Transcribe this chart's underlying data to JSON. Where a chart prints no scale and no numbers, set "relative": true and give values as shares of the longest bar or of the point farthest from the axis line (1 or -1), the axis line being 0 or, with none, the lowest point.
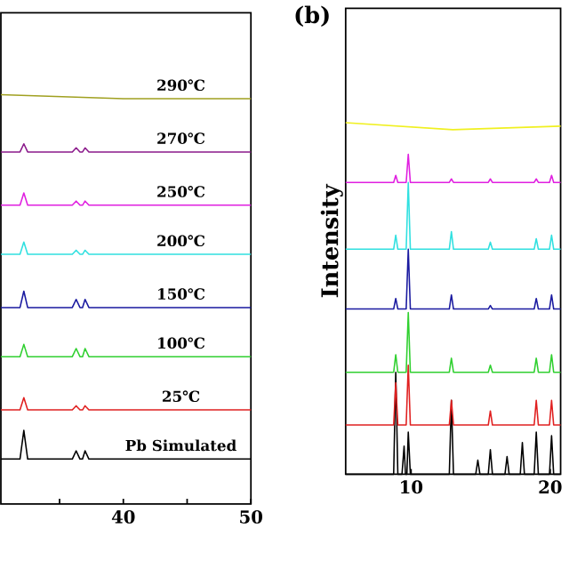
{
  "chart_data": [
    {
      "type": "line",
      "relative": true,
      "xlim": [
        30.4,
        50
      ],
      "xticks": [
        {
          "value": 35,
          "label": null
        },
        40,
        {
          "value": 45,
          "label": null
        },
        50
      ],
      "series": [
        {
          "name": "Pb Simulated",
          "color": "#000000",
          "x": [
            30.4,
            31.9,
            32.2,
            32.5,
            36.0,
            36.3,
            36.6,
            36.8,
            37.0,
            37.3,
            50
          ],
          "values": [
            0.11,
            0.11,
            0.18,
            0.11,
            0.11,
            0.13,
            0.11,
            0.11,
            0.13,
            0.11,
            0.11
          ]
        },
        {
          "name": "25℃",
          "color": "#e02020",
          "x": [
            30.4,
            31.9,
            32.2,
            32.5,
            36.0,
            36.3,
            36.6,
            36.8,
            37.0,
            37.3,
            50
          ],
          "values": [
            0.23,
            0.23,
            0.26,
            0.23,
            0.23,
            0.24,
            0.23,
            0.23,
            0.24,
            0.23,
            0.23
          ]
        },
        {
          "name": "100℃",
          "color": "#30d030",
          "x": [
            30.4,
            31.9,
            32.2,
            32.5,
            36.0,
            36.3,
            36.6,
            36.8,
            37.0,
            37.3,
            50
          ],
          "values": [
            0.36,
            0.36,
            0.39,
            0.36,
            0.36,
            0.38,
            0.36,
            0.36,
            0.38,
            0.36,
            0.36
          ]
        },
        {
          "name": "150℃",
          "color": "#1a1aa0",
          "x": [
            30.4,
            31.9,
            32.2,
            32.5,
            36.0,
            36.3,
            36.6,
            36.8,
            37.0,
            37.3,
            50
          ],
          "values": [
            0.48,
            0.48,
            0.52,
            0.48,
            0.48,
            0.5,
            0.48,
            0.48,
            0.5,
            0.48,
            0.48
          ]
        },
        {
          "name": "200℃",
          "color": "#30e0e0",
          "x": [
            30.4,
            31.9,
            32.2,
            32.5,
            36.0,
            36.3,
            36.6,
            36.8,
            37.0,
            37.3,
            50
          ],
          "values": [
            0.61,
            0.61,
            0.64,
            0.61,
            0.61,
            0.62,
            0.61,
            0.61,
            0.62,
            0.61,
            0.61
          ]
        },
        {
          "name": "250℃",
          "color": "#e020e0",
          "x": [
            30.4,
            31.9,
            32.2,
            32.5,
            36.0,
            36.3,
            36.6,
            36.8,
            37.0,
            37.3,
            50
          ],
          "values": [
            0.73,
            0.73,
            0.76,
            0.73,
            0.73,
            0.74,
            0.73,
            0.73,
            0.74,
            0.73,
            0.73
          ]
        },
        {
          "name": "270℃",
          "color": "#8b1a8b",
          "x": [
            30.4,
            31.9,
            32.2,
            32.5,
            36.0,
            36.3,
            36.6,
            36.8,
            37.0,
            37.3,
            50
          ],
          "values": [
            0.86,
            0.86,
            0.88,
            0.86,
            0.86,
            0.87,
            0.86,
            0.86,
            0.87,
            0.86,
            0.86
          ]
        },
        {
          "name": "290℃",
          "color": "#a0a020",
          "x": [
            30.4,
            40,
            50
          ],
          "values": [
            1,
            0.99,
            0.99
          ]
        }
      ]
    },
    {
      "type": "line",
      "relative": true,
      "title": "(b)",
      "ylabel": "Intensity",
      "xlim": [
        5.3,
        20.75
      ],
      "xticks": [
        10,
        20
      ],
      "series": [
        {
          "color": "#000000",
          "x": [
            5.3,
            8.75,
            8.9,
            9.05,
            9.35,
            9.5,
            9.6,
            9.7,
            9.8,
            9.95,
            12.75,
            12.9,
            13.05,
            14.65,
            14.8,
            14.95,
            15.55,
            15.7,
            15.85,
            16.75,
            16.9,
            17.05,
            17.85,
            18.0,
            18.15,
            18.85,
            19.0,
            19.15,
            19.95,
            20.1,
            20.25,
            20.75
          ],
          "values": [
            0,
            0,
            0.29,
            0,
            0,
            0.08,
            0,
            0,
            0.12,
            0,
            0,
            0.21,
            0,
            0,
            0.04,
            0,
            0,
            0.07,
            0,
            0,
            0.05,
            0,
            0,
            0.09,
            0,
            0,
            0.12,
            0,
            0,
            0.11,
            0,
            0
          ]
        },
        {
          "color": "#e02020",
          "x": [
            5.3,
            8.75,
            8.9,
            9.05,
            9.65,
            9.8,
            9.95,
            12.75,
            12.9,
            13.05,
            15.55,
            15.7,
            15.85,
            18.85,
            19.0,
            19.15,
            19.95,
            20.1,
            20.25,
            20.75
          ],
          "values": [
            0.14,
            0.14,
            0.26,
            0.14,
            0.14,
            0.31,
            0.14,
            0.14,
            0.21,
            0.14,
            0.14,
            0.18,
            0.14,
            0.14,
            0.21,
            0.14,
            0.14,
            0.21,
            0.14,
            0.14
          ]
        },
        {
          "color": "#30d030",
          "x": [
            5.3,
            8.75,
            8.9,
            9.05,
            9.65,
            9.8,
            9.95,
            12.75,
            12.9,
            13.05,
            15.55,
            15.7,
            15.85,
            18.85,
            19.0,
            19.15,
            19.95,
            20.1,
            20.25,
            20.75
          ],
          "values": [
            0.29,
            0.29,
            0.34,
            0.29,
            0.29,
            0.46,
            0.29,
            0.29,
            0.33,
            0.29,
            0.29,
            0.31,
            0.29,
            0.29,
            0.33,
            0.29,
            0.29,
            0.34,
            0.29,
            0.29
          ]
        },
        {
          "color": "#1a1aa0",
          "x": [
            5.3,
            8.75,
            8.9,
            9.05,
            9.65,
            9.8,
            9.95,
            12.75,
            12.9,
            13.05,
            15.55,
            15.7,
            15.85,
            18.85,
            19.0,
            19.15,
            19.95,
            20.1,
            20.25,
            20.75
          ],
          "values": [
            0.47,
            0.47,
            0.5,
            0.47,
            0.47,
            0.64,
            0.47,
            0.47,
            0.51,
            0.47,
            0.47,
            0.48,
            0.47,
            0.47,
            0.5,
            0.47,
            0.47,
            0.51,
            0.47,
            0.47
          ]
        },
        {
          "color": "#30e0e0",
          "x": [
            5.3,
            8.75,
            8.9,
            9.05,
            9.65,
            9.8,
            9.95,
            12.75,
            12.9,
            13.05,
            15.55,
            15.7,
            15.85,
            18.85,
            19.0,
            19.15,
            19.95,
            20.1,
            20.25,
            20.75
          ],
          "values": [
            0.64,
            0.64,
            0.68,
            0.64,
            0.64,
            0.83,
            0.64,
            0.64,
            0.69,
            0.64,
            0.64,
            0.66,
            0.64,
            0.64,
            0.67,
            0.64,
            0.64,
            0.68,
            0.64,
            0.64
          ]
        },
        {
          "color": "#e020e0",
          "x": [
            5.3,
            8.75,
            8.9,
            9.05,
            9.65,
            9.8,
            9.95,
            12.75,
            12.9,
            13.05,
            15.55,
            15.7,
            15.85,
            18.85,
            19.0,
            19.15,
            19.95,
            20.1,
            20.25,
            20.75
          ],
          "values": [
            0.83,
            0.83,
            0.85,
            0.83,
            0.83,
            0.91,
            0.83,
            0.83,
            0.84,
            0.83,
            0.83,
            0.84,
            0.83,
            0.83,
            0.84,
            0.83,
            0.83,
            0.85,
            0.83,
            0.83
          ]
        },
        {
          "color": "#f0f020",
          "x": [
            5.3,
            13,
            20.75
          ],
          "values": [
            1,
            0.98,
            0.99
          ]
        }
      ]
    }
  ]
}
